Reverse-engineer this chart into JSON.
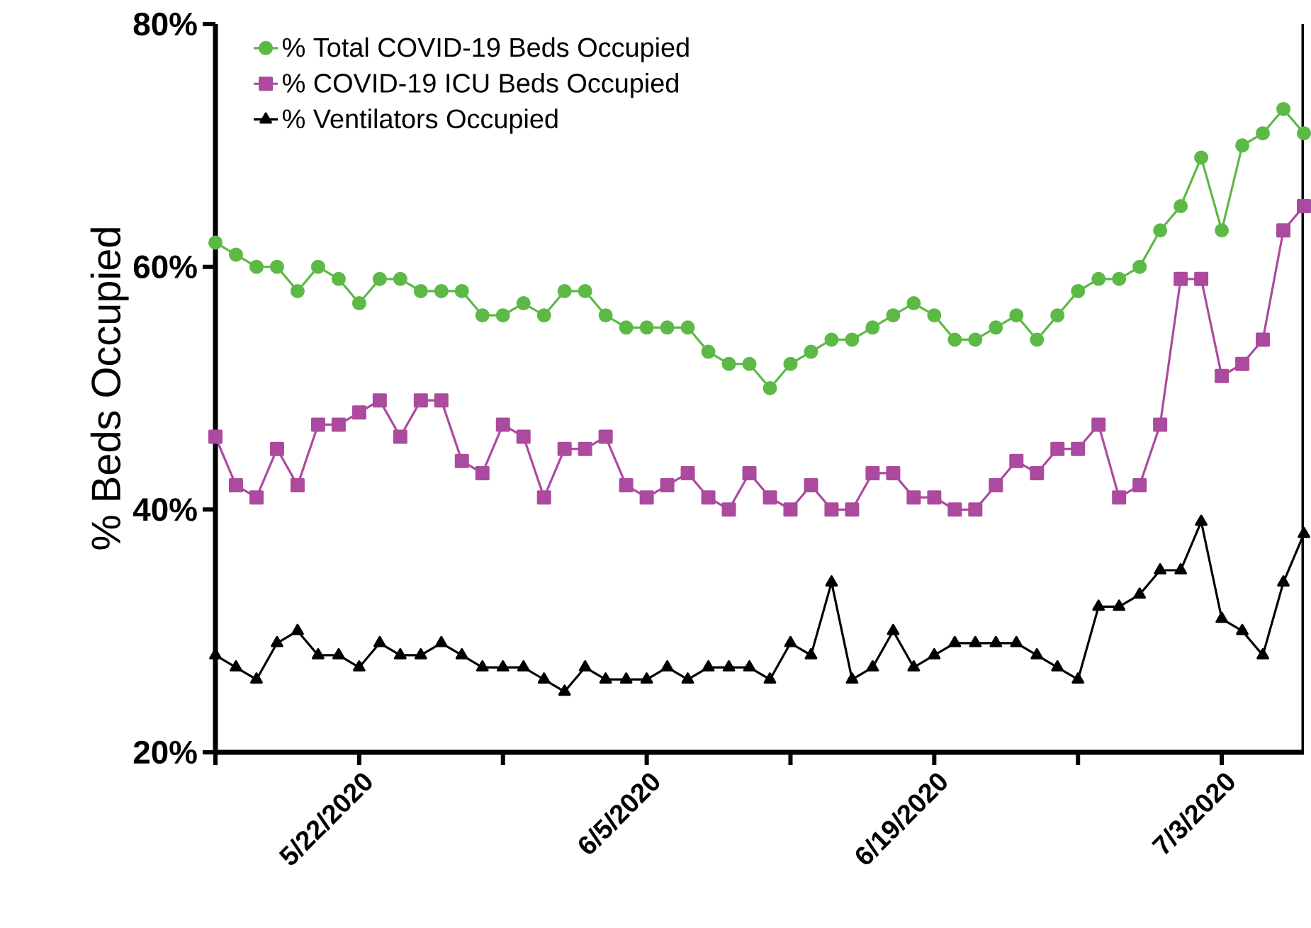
{
  "chart_data": {
    "type": "line",
    "ylabel": "% Beds Occupied",
    "x": [
      "2020-05-15",
      "2020-05-16",
      "2020-05-17",
      "2020-05-18",
      "2020-05-19",
      "2020-05-20",
      "2020-05-21",
      "2020-05-22",
      "2020-05-23",
      "2020-05-24",
      "2020-05-25",
      "2020-05-26",
      "2020-05-27",
      "2020-05-28",
      "2020-05-29",
      "2020-05-30",
      "2020-05-31",
      "2020-06-01",
      "2020-06-02",
      "2020-06-03",
      "2020-06-04",
      "2020-06-05",
      "2020-06-06",
      "2020-06-07",
      "2020-06-08",
      "2020-06-09",
      "2020-06-10",
      "2020-06-11",
      "2020-06-12",
      "2020-06-13",
      "2020-06-14",
      "2020-06-15",
      "2020-06-16",
      "2020-06-17",
      "2020-06-18",
      "2020-06-19",
      "2020-06-20",
      "2020-06-21",
      "2020-06-22",
      "2020-06-23",
      "2020-06-24",
      "2020-06-25",
      "2020-06-26",
      "2020-06-27",
      "2020-06-28",
      "2020-06-29",
      "2020-06-30",
      "2020-07-01",
      "2020-07-02",
      "2020-07-03",
      "2020-07-04",
      "2020-07-05",
      "2020-07-06",
      "2020-07-07"
    ],
    "series": [
      {
        "name": "% Total COVID-19 Beds Occupied",
        "color": "#5cb946",
        "marker": "circle",
        "values": [
          62,
          61,
          60,
          60,
          58,
          60,
          59,
          57,
          59,
          59,
          58,
          58,
          58,
          56,
          56,
          57,
          56,
          58,
          58,
          56,
          55,
          55,
          55,
          55,
          53,
          52,
          52,
          50,
          52,
          53,
          54,
          54,
          55,
          56,
          57,
          56,
          54,
          54,
          55,
          56,
          54,
          56,
          58,
          59,
          59,
          60,
          63,
          65,
          69,
          63,
          70,
          71,
          73,
          71
        ]
      },
      {
        "name": "% COVID-19 ICU Beds Occupied",
        "color": "#ab4a9e",
        "marker": "square",
        "values": [
          46,
          42,
          41,
          45,
          42,
          47,
          47,
          48,
          49,
          46,
          49,
          49,
          44,
          43,
          47,
          46,
          41,
          45,
          45,
          46,
          42,
          41,
          42,
          43,
          41,
          40,
          43,
          41,
          40,
          42,
          40,
          40,
          43,
          43,
          41,
          41,
          40,
          40,
          42,
          44,
          43,
          45,
          45,
          47,
          41,
          42,
          47,
          59,
          59,
          51,
          52,
          54,
          63,
          65
        ]
      },
      {
        "name": "% Ventilators Occupied",
        "color": "#000000",
        "marker": "triangle",
        "values": [
          28,
          27,
          26,
          29,
          30,
          28,
          28,
          27,
          29,
          28,
          28,
          29,
          28,
          27,
          27,
          27,
          26,
          25,
          27,
          26,
          26,
          26,
          27,
          26,
          27,
          27,
          27,
          26,
          29,
          28,
          34,
          26,
          27,
          30,
          27,
          28,
          29,
          29,
          29,
          29,
          28,
          27,
          26,
          32,
          32,
          33,
          35,
          35,
          39,
          31,
          30,
          28,
          34,
          38
        ]
      }
    ],
    "xlim": [
      "2020-05-15",
      "2020-07-07"
    ],
    "xticks": [
      {
        "value": "2020-05-15",
        "label": null
      },
      {
        "value": "2020-05-22",
        "label": "5/22/2020"
      },
      {
        "value": "2020-05-29",
        "label": null
      },
      {
        "value": "2020-06-05",
        "label": "6/5/2020"
      },
      {
        "value": "2020-06-12",
        "label": null
      },
      {
        "value": "2020-06-19",
        "label": "6/19/2020"
      },
      {
        "value": "2020-06-26",
        "label": null
      },
      {
        "value": "2020-07-03",
        "label": "7/3/2020"
      }
    ],
    "ylim": [
      20,
      80
    ],
    "yticks": [
      {
        "value": 20,
        "label": "20%"
      },
      {
        "value": 40,
        "label": "40%"
      },
      {
        "value": 60,
        "label": "60%"
      },
      {
        "value": 80,
        "label": "80%"
      }
    ],
    "legend": "top left",
    "grid": false,
    "line_style": "solid"
  }
}
